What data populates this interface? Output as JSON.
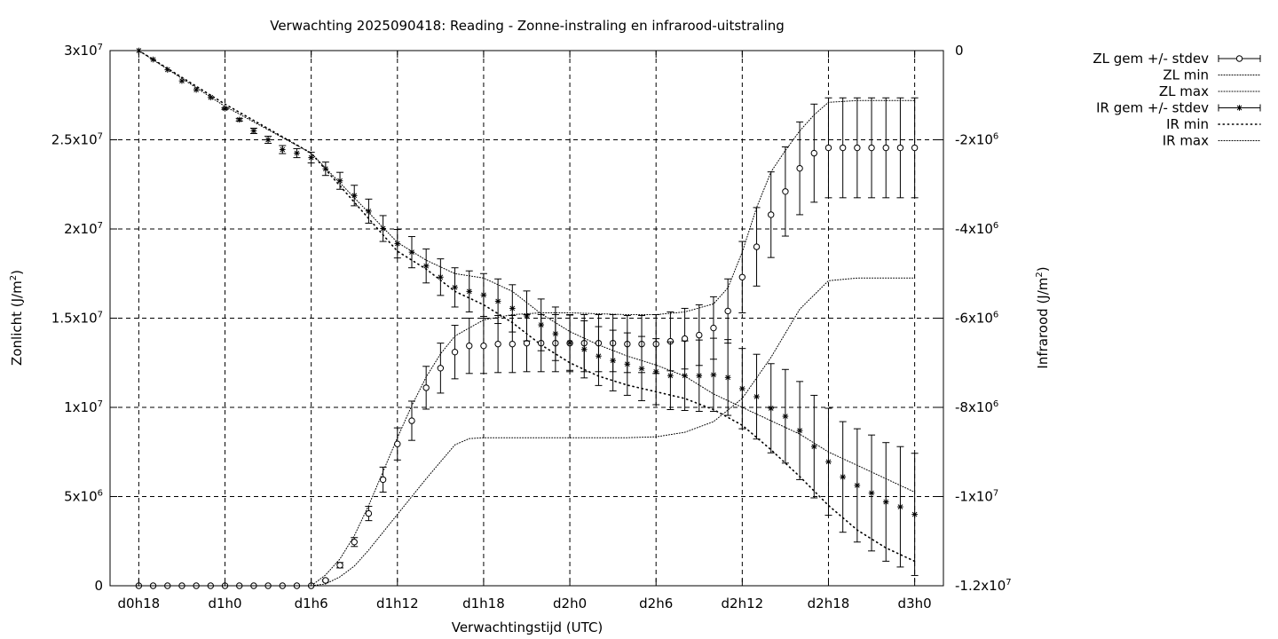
{
  "chart_data": {
    "type": "line",
    "title": "Verwachting 2025090418: Reading - Zonne-instraling en infrarood-uitstraling",
    "xlabel": "Verwachtingstijd (UTC)",
    "ylabel": "Zonlicht (J/m²)",
    "y2label": "Infrarood (J/m²)",
    "x_unit": "hours since forecast start",
    "xlim": [
      -2,
      56
    ],
    "ylim": [
      0,
      30000000
    ],
    "y2lim": [
      -12000000,
      0
    ],
    "x_ticks": [
      {
        "x": 0,
        "label": "d0h18"
      },
      {
        "x": 6,
        "label": "d1h0"
      },
      {
        "x": 12,
        "label": "d1h6"
      },
      {
        "x": 18,
        "label": "d1h12"
      },
      {
        "x": 24,
        "label": "d1h18"
      },
      {
        "x": 30,
        "label": "d2h0"
      },
      {
        "x": 36,
        "label": "d2h6"
      },
      {
        "x": 42,
        "label": "d2h12"
      },
      {
        "x": 48,
        "label": "d2h18"
      },
      {
        "x": 54,
        "label": "d3h0"
      }
    ],
    "y_ticks": [
      {
        "v": 0,
        "base": "0",
        "exp": ""
      },
      {
        "v": 5000000,
        "base": "5x10",
        "exp": "6"
      },
      {
        "v": 10000000,
        "base": "1x10",
        "exp": "7"
      },
      {
        "v": 15000000,
        "base": "1.5x10",
        "exp": "7"
      },
      {
        "v": 20000000,
        "base": "2x10",
        "exp": "7"
      },
      {
        "v": 25000000,
        "base": "2.5x10",
        "exp": "7"
      },
      {
        "v": 30000000,
        "base": "3x10",
        "exp": "7"
      }
    ],
    "y2_ticks": [
      {
        "v": 0,
        "base": "0",
        "exp": ""
      },
      {
        "v": -2000000,
        "base": "-2x10",
        "exp": "6"
      },
      {
        "v": -4000000,
        "base": "-4x10",
        "exp": "6"
      },
      {
        "v": -6000000,
        "base": "-6x10",
        "exp": "6"
      },
      {
        "v": -8000000,
        "base": "-8x10",
        "exp": "6"
      },
      {
        "v": -10000000,
        "base": "-1x10",
        "exp": "7"
      },
      {
        "v": -12000000,
        "base": "-1.2x10",
        "exp": "7"
      }
    ],
    "grid": true,
    "legend_position": "outside-top-right",
    "series": [
      {
        "name": "ZL gem +/- stdev",
        "axis": "y",
        "marker": "open-circle",
        "x": [
          0,
          1,
          2,
          3,
          4,
          5,
          6,
          7,
          8,
          9,
          10,
          11,
          12,
          13,
          14,
          15,
          16,
          17,
          18,
          19,
          20,
          21,
          22,
          23,
          24,
          25,
          26,
          27,
          28,
          29,
          30,
          31,
          32,
          33,
          34,
          35,
          36,
          37,
          38,
          39,
          40,
          41,
          42,
          43,
          44,
          45,
          46,
          47,
          48,
          49,
          50,
          51,
          52,
          53,
          54
        ],
        "mean": [
          0,
          0,
          0,
          0,
          0,
          0,
          0,
          0,
          0,
          0,
          0,
          0,
          0,
          300000,
          1150000,
          2450000,
          4050000,
          5950000,
          7950000,
          9250000,
          11100000,
          12200000,
          13100000,
          13450000,
          13450000,
          13550000,
          13550000,
          13600000,
          13600000,
          13600000,
          13600000,
          13600000,
          13600000,
          13600000,
          13550000,
          13550000,
          13550000,
          13700000,
          13850000,
          14050000,
          14450000,
          15400000,
          17300000,
          19000000,
          20800000,
          22100000,
          23400000,
          24250000,
          24550000,
          24550000,
          24550000,
          24550000,
          24550000,
          24550000,
          24550000
        ],
        "stdev": [
          0,
          0,
          0,
          0,
          0,
          0,
          0,
          0,
          0,
          0,
          0,
          0,
          0,
          50000,
          150000,
          250000,
          400000,
          700000,
          900000,
          1100000,
          1200000,
          1400000,
          1500000,
          1550000,
          1550000,
          1600000,
          1600000,
          1600000,
          1600000,
          1600000,
          1600000,
          1600000,
          1600000,
          1600000,
          1600000,
          1600000,
          1650000,
          1650000,
          1700000,
          1700000,
          1750000,
          1800000,
          2000000,
          2200000,
          2400000,
          2500000,
          2600000,
          2750000,
          2800000,
          2800000,
          2800000,
          2800000,
          2800000,
          2800000,
          2800000
        ]
      },
      {
        "name": "ZL min",
        "axis": "y",
        "style": "dotted",
        "x": [
          0,
          12,
          13,
          14,
          15,
          16,
          18,
          20,
          22,
          23,
          24,
          26,
          28,
          30,
          32,
          34,
          36,
          38,
          40,
          42,
          44,
          46,
          48,
          50,
          52,
          54
        ],
        "y": [
          0,
          0,
          100000,
          500000,
          1100000,
          2000000,
          4000000,
          6000000,
          7900000,
          8250000,
          8300000,
          8300000,
          8300000,
          8300000,
          8300000,
          8300000,
          8350000,
          8600000,
          9200000,
          10500000,
          12800000,
          15500000,
          17100000,
          17250000,
          17250000,
          17250000
        ]
      },
      {
        "name": "ZL max",
        "axis": "y",
        "style": "dotted",
        "x": [
          0,
          12,
          13,
          14,
          15,
          16,
          17,
          18,
          19,
          20,
          21,
          22,
          24,
          26,
          28,
          30,
          32,
          34,
          36,
          38,
          40,
          41,
          42,
          43,
          44,
          45,
          46,
          47,
          48,
          50,
          52,
          54
        ],
        "y": [
          0,
          0,
          600000,
          1500000,
          2800000,
          4500000,
          6400000,
          8300000,
          10100000,
          11700000,
          13000000,
          14000000,
          14900000,
          15200000,
          15300000,
          15300000,
          15250000,
          15200000,
          15200000,
          15350000,
          15800000,
          16700000,
          18700000,
          21200000,
          23200000,
          24400000,
          25500000,
          26400000,
          27100000,
          27200000,
          27200000,
          27200000
        ]
      },
      {
        "name": "IR gem +/- stdev",
        "axis": "y2",
        "marker": "star",
        "x": [
          0,
          1,
          2,
          3,
          4,
          5,
          6,
          7,
          8,
          9,
          10,
          11,
          12,
          13,
          14,
          15,
          16,
          17,
          18,
          19,
          20,
          21,
          22,
          23,
          24,
          25,
          26,
          27,
          28,
          29,
          30,
          31,
          32,
          33,
          34,
          35,
          36,
          37,
          38,
          39,
          40,
          41,
          42,
          43,
          44,
          45,
          46,
          47,
          48,
          49,
          50,
          51,
          52,
          53,
          54
        ],
        "mean": [
          0,
          -200000,
          -430000,
          -680000,
          -880000,
          -1050000,
          -1300000,
          -1550000,
          -1800000,
          -2000000,
          -2220000,
          -2300000,
          -2400000,
          -2650000,
          -2920000,
          -3250000,
          -3600000,
          -3990000,
          -4330000,
          -4520000,
          -4830000,
          -5080000,
          -5310000,
          -5400000,
          -5480000,
          -5620000,
          -5780000,
          -5950000,
          -6150000,
          -6350000,
          -6550000,
          -6700000,
          -6850000,
          -6950000,
          -7030000,
          -7130000,
          -7200000,
          -7290000,
          -7290000,
          -7290000,
          -7270000,
          -7330000,
          -7580000,
          -7760000,
          -8020000,
          -8200000,
          -8520000,
          -8880000,
          -9220000,
          -9560000,
          -9750000,
          -9920000,
          -10120000,
          -10230000,
          -10400000
        ],
        "stdev": [
          0,
          0,
          0,
          0,
          0,
          0,
          20000,
          30000,
          60000,
          80000,
          90000,
          100000,
          120000,
          150000,
          190000,
          230000,
          270000,
          290000,
          320000,
          350000,
          380000,
          410000,
          440000,
          460000,
          480000,
          500000,
          530000,
          560000,
          580000,
          600000,
          620000,
          640000,
          660000,
          680000,
          700000,
          720000,
          740000,
          760000,
          780000,
          800000,
          820000,
          850000,
          900000,
          950000,
          1000000,
          1050000,
          1100000,
          1150000,
          1200000,
          1240000,
          1270000,
          1300000,
          1330000,
          1350000,
          1370000
        ]
      },
      {
        "name": "IR min",
        "axis": "y2",
        "style": "dotted",
        "x": [
          0,
          6,
          12,
          18,
          20,
          22,
          24,
          26,
          28,
          30,
          32,
          34,
          36,
          38,
          40,
          42,
          44,
          46,
          48,
          50,
          52,
          54
        ],
        "y": [
          0,
          -1200000,
          -2300000,
          -4500000,
          -4900000,
          -5400000,
          -5700000,
          -6100000,
          -6600000,
          -7000000,
          -7300000,
          -7500000,
          -7650000,
          -7800000,
          -8050000,
          -8400000,
          -8950000,
          -9550000,
          -10200000,
          -10750000,
          -11150000,
          -11450000
        ]
      },
      {
        "name": "IR max",
        "axis": "y2",
        "style": "dotted",
        "x": [
          0,
          6,
          12,
          18,
          20,
          22,
          24,
          26,
          28,
          30,
          32,
          34,
          36,
          38,
          40,
          42,
          44,
          46,
          48,
          50,
          52,
          54
        ],
        "y": [
          0,
          -1250000,
          -2300000,
          -4300000,
          -4700000,
          -5000000,
          -5100000,
          -5400000,
          -5900000,
          -6300000,
          -6600000,
          -6850000,
          -7050000,
          -7300000,
          -7700000,
          -8000000,
          -8300000,
          -8600000,
          -9000000,
          -9300000,
          -9600000,
          -9900000
        ]
      }
    ]
  }
}
